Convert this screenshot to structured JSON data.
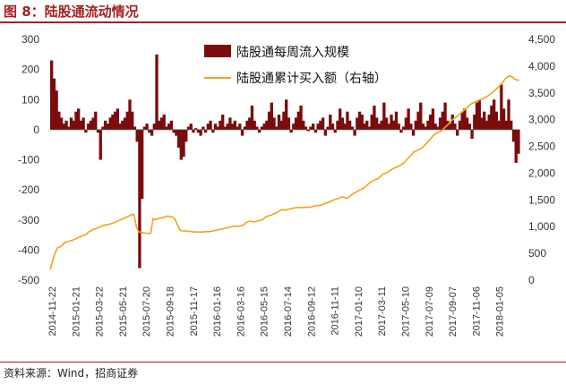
{
  "figure": {
    "title": "图 8：陆股通流动情况",
    "source": "资料来源：Wind，招商证券"
  },
  "colors": {
    "title": "#a51e22",
    "bars": "#7b0c0c",
    "line": "#f2a21b"
  },
  "chart_data": {
    "type": "bar",
    "left_axis": {
      "ylim": [
        -500,
        300
      ],
      "ticks": [
        "300",
        "200",
        "100",
        "0",
        "-100",
        "-200",
        "-300",
        "-400",
        "-500"
      ]
    },
    "right_axis": {
      "ylim": [
        0,
        4500
      ],
      "ticks": [
        "4,500",
        "4,000",
        "3,500",
        "3,000",
        "2,500",
        "2,000",
        "1,500",
        "1,000",
        "500",
        "0"
      ]
    },
    "x_ticks": [
      "2014-11-22",
      "2015-01-21",
      "2015-03-22",
      "2015-05-21",
      "2015-07-20",
      "2015-09-18",
      "2015-11-17",
      "2016-01-16",
      "2016-03-16",
      "2016-05-15",
      "2016-07-14",
      "2016-09-12",
      "2016-11-11",
      "2017-01-10",
      "2017-03-11",
      "2017-05-10",
      "2017-07-09",
      "2017-09-07",
      "2017-11-06",
      "2018-01-05"
    ],
    "series": [
      {
        "name": "陆股通每周流入规模",
        "type": "bar",
        "axis": "left",
        "values": [
          230,
          170,
          130,
          60,
          40,
          20,
          30,
          10,
          40,
          30,
          60,
          70,
          30,
          40,
          -10,
          20,
          30,
          40,
          60,
          -10,
          -100,
          10,
          30,
          20,
          40,
          50,
          60,
          70,
          20,
          30,
          40,
          60,
          100,
          60,
          10,
          -40,
          -460,
          -230,
          10,
          20,
          -10,
          -20,
          20,
          250,
          30,
          40,
          50,
          10,
          20,
          30,
          -10,
          -20,
          -60,
          -100,
          -90,
          -40,
          10,
          20,
          -10,
          5,
          -10,
          -20,
          10,
          -10,
          20,
          30,
          -10,
          20,
          10,
          30,
          50,
          10,
          20,
          40,
          20,
          30,
          10,
          20,
          -20,
          10,
          30,
          40,
          80,
          30,
          10,
          -10,
          10,
          20,
          30,
          60,
          90,
          40,
          10,
          50,
          30,
          60,
          100,
          40,
          -10,
          20,
          40,
          60,
          80,
          30,
          10,
          -5,
          10,
          20,
          -10,
          20,
          30,
          40,
          -20,
          10,
          50,
          20,
          -10,
          30,
          70,
          40,
          20,
          60,
          30,
          10,
          -20,
          40,
          60,
          50,
          20,
          30,
          10,
          50,
          80,
          40,
          20,
          30,
          90,
          40,
          20,
          50,
          30,
          60,
          20,
          -10,
          10,
          40,
          70,
          20,
          -20,
          30,
          60,
          90,
          20,
          10,
          30,
          50,
          70,
          20,
          10,
          40,
          60,
          90,
          30,
          20,
          50,
          20,
          -20,
          30,
          60,
          70,
          40,
          20,
          -30,
          50,
          90,
          100,
          40,
          60,
          30,
          50,
          80,
          100,
          60,
          30,
          150,
          70,
          30,
          100,
          30,
          -40,
          -110,
          -80
        ]
      },
      {
        "name": "陆股通累计买入额（右轴）",
        "type": "line",
        "axis": "right",
        "values": [
          200,
          350,
          500,
          600,
          620,
          650,
          700,
          720,
          730,
          740,
          760,
          780,
          800,
          820,
          840,
          850,
          900,
          920,
          950,
          960,
          980,
          1000,
          1020,
          1030,
          1040,
          1050,
          1060,
          1080,
          1100,
          1120,
          1140,
          1160,
          1180,
          1200,
          1220,
          1230,
          1000,
          900,
          900,
          880,
          880,
          870,
          880,
          1150,
          1130,
          1150,
          1160,
          1170,
          1180,
          1200,
          1190,
          1180,
          1150,
          1050,
          950,
          920,
          920,
          920,
          910,
          910,
          900,
          900,
          900,
          900,
          900,
          910,
          905,
          910,
          920,
          930,
          940,
          950,
          960,
          970,
          980,
          990,
          1000,
          1010,
          1005,
          1010,
          1020,
          1040,
          1080,
          1100,
          1100,
          1090,
          1100,
          1110,
          1120,
          1140,
          1180,
          1200,
          1210,
          1230,
          1250,
          1270,
          1300,
          1320,
          1310,
          1320,
          1330,
          1340,
          1350,
          1355,
          1360,
          1355,
          1360,
          1365,
          1360,
          1370,
          1380,
          1400,
          1390,
          1400,
          1420,
          1440,
          1450,
          1470,
          1490,
          1510,
          1520,
          1540,
          1560,
          1540,
          1530,
          1560,
          1600,
          1630,
          1650,
          1680,
          1700,
          1720,
          1760,
          1800,
          1840,
          1860,
          1880,
          1900,
          1940,
          1980,
          2000,
          2020,
          2050,
          2080,
          2100,
          2120,
          2140,
          2170,
          2200,
          2250,
          2300,
          2350,
          2400,
          2420,
          2440,
          2460,
          2500,
          2550,
          2600,
          2650,
          2700,
          2740,
          2760,
          2780,
          2820,
          2860,
          2900,
          2950,
          3000,
          3030,
          3060,
          3100,
          3140,
          3180,
          3220,
          3260,
          3300,
          3320,
          3340,
          3360,
          3380,
          3400,
          3420,
          3450,
          3480,
          3520,
          3560,
          3600,
          3650,
          3700,
          3760,
          3800,
          3820,
          3800,
          3760,
          3740,
          3740
        ]
      }
    ],
    "legend": "top-center"
  }
}
